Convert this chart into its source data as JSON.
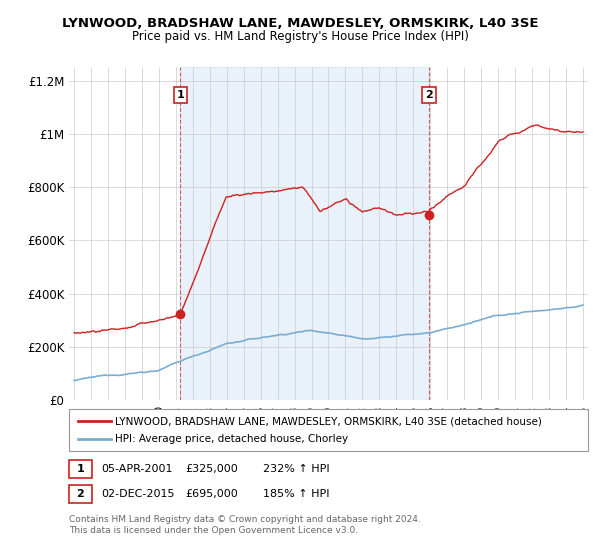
{
  "title": "LYNWOOD, BRADSHAW LANE, MAWDESLEY, ORMSKIRK, L40 3SE",
  "subtitle": "Price paid vs. HM Land Registry's House Price Index (HPI)",
  "legend_line1": "LYNWOOD, BRADSHAW LANE, MAWDESLEY, ORMSKIRK, L40 3SE (detached house)",
  "legend_line2": "HPI: Average price, detached house, Chorley",
  "footer1": "Contains HM Land Registry data © Crown copyright and database right 2024.",
  "footer2": "This data is licensed under the Open Government Licence v3.0.",
  "annotation1_date": "05-APR-2001",
  "annotation1_price": "£325,000",
  "annotation1_hpi": "232% ↑ HPI",
  "annotation2_date": "02-DEC-2015",
  "annotation2_price": "£695,000",
  "annotation2_hpi": "185% ↑ HPI",
  "red_line_color": "#cc2222",
  "blue_line_color": "#7aadd4",
  "shade_color": "#ddeeff",
  "ylim": [
    0,
    1250000
  ],
  "yticks": [
    0,
    200000,
    400000,
    600000,
    800000,
    1000000,
    1200000
  ],
  "ytick_labels": [
    "£0",
    "£200K",
    "£400K",
    "£600K",
    "£800K",
    "£1M",
    "£1.2M"
  ],
  "sale1_x": 2001.27,
  "sale1_y": 325000,
  "sale2_x": 2015.92,
  "sale2_y": 695000,
  "xmin": 1994.7,
  "xmax": 2025.3,
  "background_color": "#ffffff",
  "grid_color": "#cccccc"
}
